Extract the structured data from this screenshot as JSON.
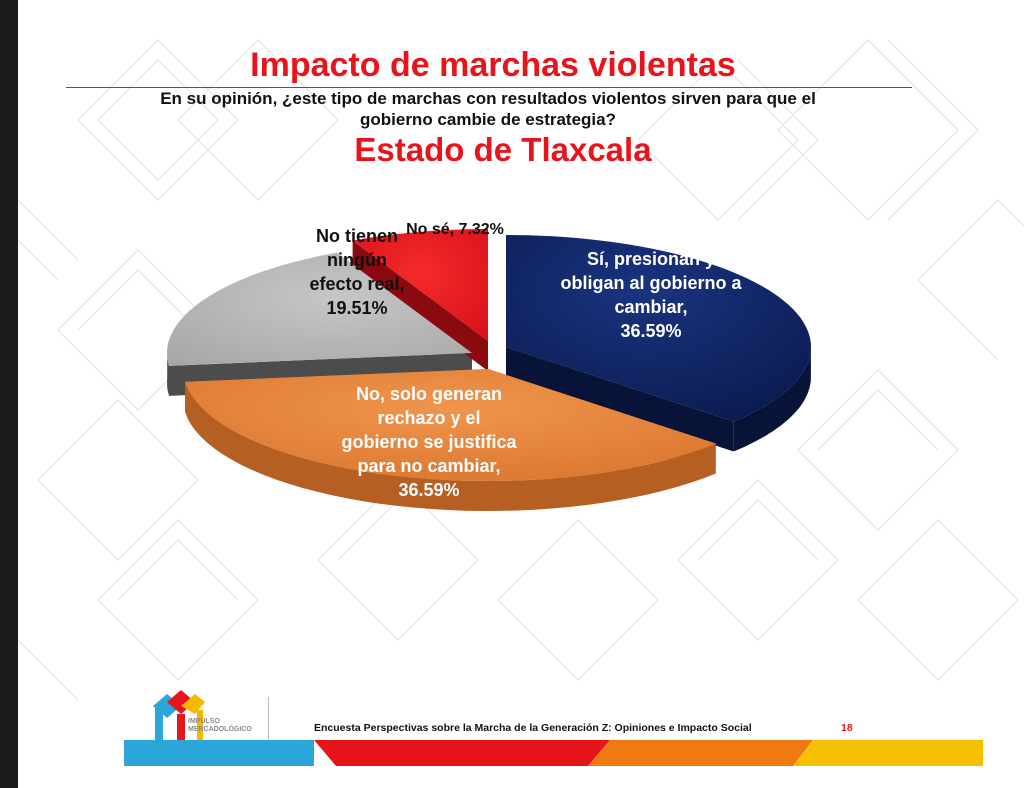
{
  "header": {
    "title": "Impacto de marchas violentas",
    "question_line1": "En su opinión, ¿este tipo de marchas con resultados violentos sirven para que el",
    "question_line2": "gobierno cambie de estrategia?",
    "subtitle": "Estado de Tlaxcala"
  },
  "chart_data": {
    "type": "pie",
    "style": "3d-exploded",
    "title": "Estado de Tlaxcala",
    "slices": [
      {
        "name": "Sí, presionan y obligan al gobierno a cambiar",
        "value": 36.59,
        "label_lines": [
          "Sí, presionan y",
          "obligan al gobierno a",
          "cambiar,",
          "36.59%"
        ],
        "color": "#0f2060"
      },
      {
        "name": "No, solo generan rechazo y el gobierno se justifica para no cambiar",
        "value": 36.59,
        "label_lines": [
          "No, solo generan",
          "rechazo y el",
          "gobierno se justifica",
          "para no cambiar,",
          "36.59%"
        ],
        "color": "#e5823a"
      },
      {
        "name": "No tienen ningún efecto real",
        "value": 19.51,
        "label_lines": [
          "No tienen",
          "ningún",
          "efecto real,",
          "19.51%"
        ],
        "color": "#b5b5b5"
      },
      {
        "name": "No sé",
        "value": 7.32,
        "label_lines": [
          "No sé, 7.32%"
        ],
        "color": "#e8141b"
      }
    ]
  },
  "footer": {
    "logo_line1": "IMPULSO",
    "logo_line2": "MERCADOLÓGICO",
    "survey_name": "Encuesta Perspectivas sobre la Marcha de la Generación Z: Opiniones e Impacto Social",
    "page_number": "18"
  }
}
